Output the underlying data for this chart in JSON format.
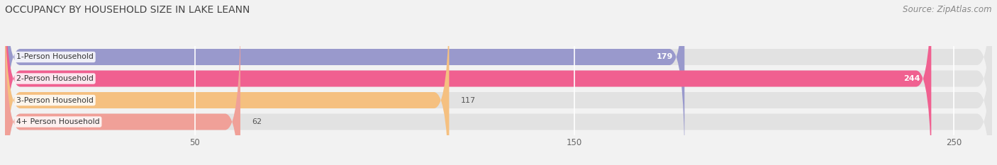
{
  "title": "OCCUPANCY BY HOUSEHOLD SIZE IN LAKE LEANN",
  "source": "Source: ZipAtlas.com",
  "categories": [
    "1-Person Household",
    "2-Person Household",
    "3-Person Household",
    "4+ Person Household"
  ],
  "values": [
    179,
    244,
    117,
    62
  ],
  "bar_colors": [
    "#9999cc",
    "#f06090",
    "#f5c080",
    "#f0a098"
  ],
  "label_colors": [
    "white",
    "white",
    "black",
    "black"
  ],
  "xlim": [
    0,
    260
  ],
  "xticks": [
    50,
    150,
    250
  ],
  "background_color": "#f2f2f2",
  "bar_background_color": "#e2e2e2",
  "title_fontsize": 10,
  "source_fontsize": 8.5,
  "figsize": [
    14.06,
    2.33
  ],
  "dpi": 100
}
